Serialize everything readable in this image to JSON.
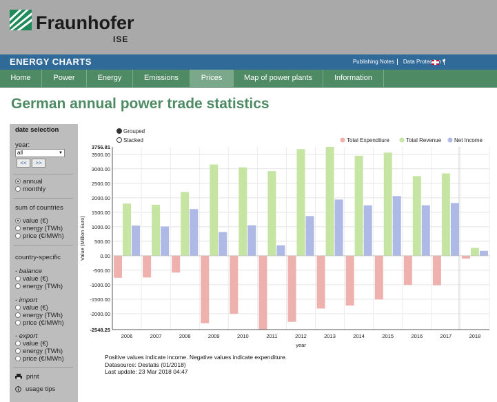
{
  "header": {
    "logo_text": "Fraunhofer",
    "logo_sub": "ISE",
    "brand": "ENERGY CHARTS",
    "links": [
      "Publishing Notes",
      "Data Protection"
    ]
  },
  "nav": {
    "items": [
      "Home",
      "Power",
      "Energy",
      "Emissions",
      "Prices",
      "Map of power plants",
      "Information"
    ],
    "active": "Prices"
  },
  "page_title": "German annual power trade statistics",
  "sidebar": {
    "date_selection": "date selection",
    "year_label": "year:",
    "year_value": "all",
    "prev_btn": "<<",
    "next_btn": ">>",
    "period_options": [
      "annual",
      "monthly"
    ],
    "period_selected": "annual",
    "sum_heading": "sum of countries",
    "sum_options": [
      "value (€)",
      "energy (TWh)",
      "price (€/MWh)"
    ],
    "country_heading": "country-specific",
    "balance_heading": "- balance",
    "balance_options": [
      "value (€)",
      "energy (TWh)"
    ],
    "import_heading": "- import",
    "import_options": [
      "value (€)",
      "energy (TWh)",
      "price (€/MWh)"
    ],
    "export_heading": "- export",
    "export_options": [
      "value (€)",
      "energy (TWh)",
      "price (€/MWh)"
    ],
    "print_label": "print",
    "tips_label": "usage tips"
  },
  "chart_data": {
    "type": "bar",
    "mode_options": [
      "Grouped",
      "Stacked"
    ],
    "mode_selected": "Grouped",
    "categories": [
      "2006",
      "2007",
      "2008",
      "2009",
      "2010",
      "2011",
      "2012",
      "2013",
      "2014",
      "2015",
      "2016",
      "2017",
      "2018"
    ],
    "series": [
      {
        "name": "Total Expenditure",
        "color": "#eeb1ad",
        "values": [
          -760,
          -750,
          -580,
          -2330,
          -2000,
          -2548.25,
          -2280,
          -1820,
          -1720,
          -1510,
          -1010,
          -1020,
          -100
        ]
      },
      {
        "name": "Total Revenue",
        "color": "#c6e5a3",
        "values": [
          1800,
          1760,
          2200,
          3150,
          3050,
          2920,
          3680,
          3756.81,
          3450,
          3560,
          2750,
          2840,
          270
        ]
      },
      {
        "name": "Net Income",
        "color": "#aeb9e5",
        "values": [
          1040,
          1010,
          1610,
          820,
          1050,
          360,
          1370,
          1940,
          1740,
          2060,
          1740,
          1820,
          170
        ]
      }
    ],
    "xlabel": "year",
    "ylabel": "Value (Million Euro)",
    "ylim": [
      -2548.25,
      3756.81
    ],
    "yticks": [
      -2000,
      -1500,
      -1000,
      -500,
      0,
      500,
      1000,
      1500,
      2000,
      2500,
      3000,
      3500
    ],
    "ytick_labels": [
      "-2000.00",
      "-1500.00",
      "-1000.00",
      "-500.00",
      "0.00",
      "500.00",
      "1000.00",
      "1500.00",
      "2000.00",
      "2500.00",
      "3000.00",
      "3500.00"
    ],
    "ymax_label": "3756.81",
    "ymin_label": "-2548.25",
    "legend_position": "top-right",
    "grid": true
  },
  "notes": [
    "Positive values indicate income. Negative values indicate expenditure.",
    "Datasource: Destatis (01/2018)",
    "Last update: 23 Mar 2018 04:47"
  ]
}
